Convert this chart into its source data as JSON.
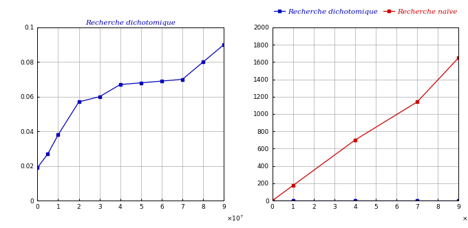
{
  "left_title": "Recherche dichotomique",
  "right_title_blue": "Recherche dichotomique",
  "right_title_red": "Recherche naïve",
  "color_blue": "#0000bb",
  "color_red": "#cc0000",
  "x_dich": [
    0,
    5000000.0,
    10000000.0,
    20000000.0,
    30000000.0,
    40000000.0,
    50000000.0,
    60000000.0,
    70000000.0,
    80000000.0,
    90000000.0
  ],
  "y_dich": [
    0.019,
    0.027,
    0.038,
    0.057,
    0.06,
    0.067,
    0.068,
    0.069,
    0.07,
    0.08,
    0.09
  ],
  "x_naive": [
    0,
    10000000.0,
    40000000.0,
    70000000.0,
    90000000.0
  ],
  "y_naive": [
    0,
    175,
    700,
    1140,
    1650
  ],
  "x_dich2": [
    0,
    10000000.0,
    40000000.0,
    70000000.0,
    90000000.0
  ],
  "y_dich2": [
    0,
    0,
    0,
    0,
    0
  ],
  "left_xlim": [
    0,
    90000000.0
  ],
  "left_ylim": [
    0,
    0.1
  ],
  "right_xlim": [
    0,
    90000000.0
  ],
  "right_ylim": [
    0,
    2000
  ],
  "left_yticks": [
    0,
    0.02,
    0.04,
    0.06,
    0.08,
    0.1
  ],
  "right_yticks": [
    0,
    200,
    400,
    600,
    800,
    1000,
    1200,
    1400,
    1600,
    1800,
    2000
  ],
  "xticks": [
    0,
    10000000.0,
    20000000.0,
    30000000.0,
    40000000.0,
    50000000.0,
    60000000.0,
    70000000.0,
    80000000.0,
    90000000.0
  ],
  "background": "#ffffff",
  "grid_color": "#aaaaaa",
  "title_fontsize": 7.5,
  "tick_fontsize": 6.5,
  "marker_size": 3,
  "line_width": 0.9
}
